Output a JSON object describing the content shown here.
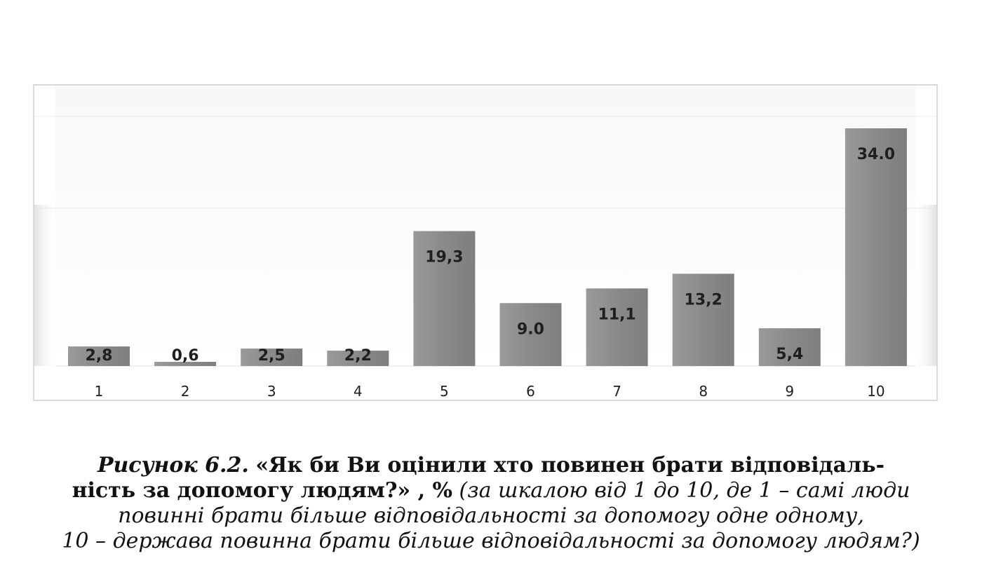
{
  "chart_data": {
    "type": "bar",
    "categories": [
      "1",
      "2",
      "3",
      "4",
      "5",
      "6",
      "7",
      "8",
      "9",
      "10"
    ],
    "values": [
      2.8,
      0.6,
      2.5,
      2.2,
      19.3,
      9.0,
      11.1,
      13.2,
      5.4,
      34.0
    ],
    "data_labels": [
      "2,8",
      "0,6",
      "2,5",
      "2,2",
      "19,3",
      "9.0",
      "11,1",
      "13,2",
      "5,4",
      "34.0"
    ],
    "ylim": [
      0,
      40
    ],
    "grid": true,
    "legend": "none",
    "bar_color": "#8c8c8c"
  },
  "caption": {
    "label": "Рисунок 6.2.",
    "title_line1": "«Як би Ви оцінили хто повинен брати відповідаль-",
    "title_line2": "ність за допомогу людям?» , %",
    "note_line1": "(за шкалою  від 1 до 10, де 1 – самі люди",
    "note_line2": "повинні брати більше відповідальності за допомогу одне одному,",
    "note_line3": "10 – держава повинна брати більше відповідальності за допомогу людям?)"
  }
}
